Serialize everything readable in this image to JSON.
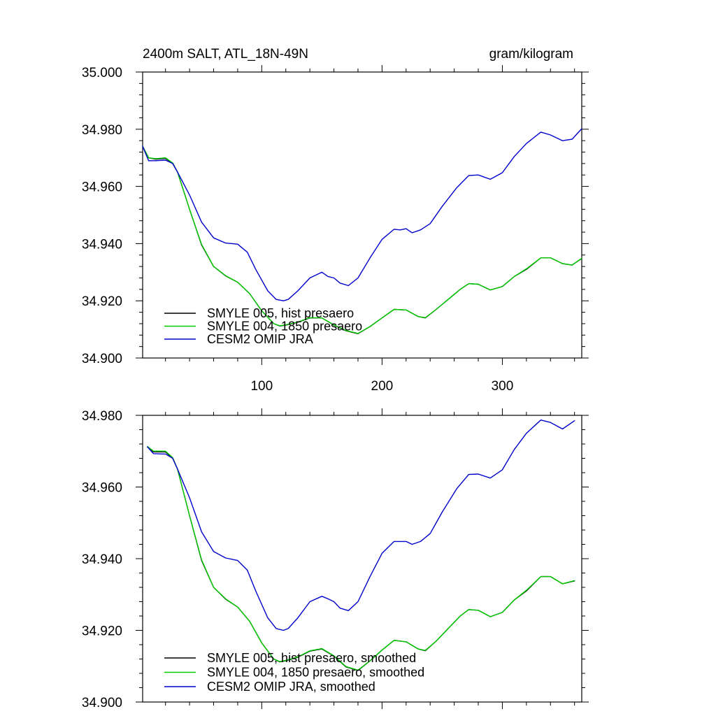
{
  "chart_data": [
    {
      "type": "line",
      "title": "2400m SALT, ATL_18N-49N",
      "units": "gram/kilogram",
      "xlabel": "",
      "ylabel": "",
      "xlim": [
        1,
        366
      ],
      "ylim": [
        34.9,
        35.0
      ],
      "xticks": [
        100,
        200,
        300
      ],
      "xtick_labels": [
        "100",
        "200",
        "300"
      ],
      "yticks": [
        34.9,
        34.92,
        34.94,
        34.96,
        34.98,
        35.0
      ],
      "ytick_labels": [
        "34.900",
        "34.920",
        "34.940",
        "34.960",
        "34.980",
        "35.000"
      ],
      "legend_position": "bottom-left",
      "series": [
        {
          "name": "SMYLE 005, hist presaero",
          "color": "#000000",
          "x": [
            1,
            6,
            12,
            20,
            26,
            30,
            40,
            50,
            60,
            70,
            80,
            90,
            100,
            110,
            115,
            120,
            130,
            140,
            150,
            160,
            170,
            180,
            190,
            200,
            210,
            220,
            230,
            236,
            245,
            255,
            265,
            272,
            280,
            290,
            300,
            310,
            320,
            332,
            340,
            350,
            358,
            366
          ],
          "y": [
            34.974,
            34.97,
            34.9695,
            34.9698,
            34.968,
            34.965,
            34.952,
            34.9395,
            34.932,
            34.9287,
            34.9265,
            34.9225,
            34.9165,
            34.912,
            34.9112,
            34.9115,
            34.9125,
            34.914,
            34.914,
            34.9115,
            34.9095,
            34.9085,
            34.911,
            34.914,
            34.917,
            34.9168,
            34.9145,
            34.914,
            34.917,
            34.9205,
            34.924,
            34.926,
            34.9258,
            34.9238,
            34.925,
            34.9285,
            34.931,
            34.935,
            34.935,
            34.933,
            34.9325,
            34.9348
          ]
        },
        {
          "name": "SMYLE 004, 1850 presaero",
          "color": "#00cc00",
          "x": [
            1,
            6,
            12,
            20,
            26,
            30,
            40,
            50,
            60,
            70,
            80,
            90,
            100,
            110,
            115,
            120,
            130,
            140,
            150,
            160,
            170,
            180,
            190,
            200,
            210,
            220,
            230,
            236,
            245,
            255,
            265,
            272,
            280,
            290,
            300,
            310,
            320,
            332,
            340,
            350,
            358,
            366
          ],
          "y": [
            34.974,
            34.97,
            34.9697,
            34.97,
            34.9682,
            34.965,
            34.952,
            34.9397,
            34.932,
            34.9288,
            34.9265,
            34.9225,
            34.9165,
            34.912,
            34.9113,
            34.9116,
            34.9126,
            34.9141,
            34.914,
            34.9116,
            34.9096,
            34.9086,
            34.911,
            34.914,
            34.917,
            34.9168,
            34.9145,
            34.9141,
            34.917,
            34.9205,
            34.924,
            34.926,
            34.9258,
            34.9238,
            34.925,
            34.9285,
            34.9312,
            34.935,
            34.935,
            34.933,
            34.9325,
            34.9349
          ]
        },
        {
          "name": "CESM2 OMIP JRA",
          "color": "#0000cc",
          "x": [
            1,
            6,
            12,
            20,
            26,
            30,
            40,
            50,
            60,
            70,
            80,
            88,
            95,
            105,
            112,
            118,
            122,
            130,
            140,
            150,
            155,
            160,
            165,
            172,
            180,
            190,
            200,
            210,
            215,
            220,
            225,
            232,
            240,
            250,
            262,
            272,
            280,
            290,
            300,
            310,
            320,
            332,
            340,
            350,
            358,
            366
          ],
          "y": [
            34.974,
            34.969,
            34.969,
            34.9692,
            34.968,
            34.965,
            34.957,
            34.9475,
            34.942,
            34.9402,
            34.9398,
            34.937,
            34.931,
            34.9235,
            34.9205,
            34.92,
            34.9205,
            34.9235,
            34.928,
            34.93,
            34.9285,
            34.928,
            34.9262,
            34.9253,
            34.928,
            34.935,
            34.9415,
            34.945,
            34.9448,
            34.9452,
            34.9438,
            34.9448,
            34.947,
            34.953,
            34.9595,
            34.9638,
            34.964,
            34.9625,
            34.9648,
            34.9705,
            34.975,
            34.979,
            34.978,
            34.976,
            34.9765,
            34.9802
          ]
        }
      ]
    },
    {
      "type": "line",
      "title": "",
      "xlabel": "",
      "ylabel": "",
      "xlim": [
        1,
        366
      ],
      "ylim": [
        34.9,
        34.98
      ],
      "xticks": [
        100,
        200,
        300
      ],
      "xtick_labels": [],
      "yticks": [
        34.9,
        34.92,
        34.94,
        34.96,
        34.98
      ],
      "ytick_labels": [
        "34.900",
        "34.920",
        "34.940",
        "34.960",
        "34.980"
      ],
      "legend_position": "bottom-left",
      "series": [
        {
          "name": "SMYLE 005, hist presaero, smoothed",
          "color": "#000000",
          "x": [
            5,
            10,
            20,
            26,
            30,
            40,
            50,
            60,
            70,
            80,
            90,
            100,
            110,
            115,
            120,
            130,
            140,
            150,
            160,
            170,
            180,
            190,
            200,
            210,
            220,
            230,
            236,
            245,
            255,
            265,
            272,
            280,
            290,
            300,
            310,
            320,
            332,
            340,
            350,
            360
          ],
          "y": [
            34.9712,
            34.9698,
            34.9698,
            34.968,
            34.965,
            34.952,
            34.9395,
            34.932,
            34.9287,
            34.9265,
            34.9225,
            34.9165,
            34.912,
            34.9112,
            34.9115,
            34.9125,
            34.9142,
            34.9148,
            34.9128,
            34.9098,
            34.9088,
            34.9115,
            34.9145,
            34.9172,
            34.9168,
            34.9148,
            34.9143,
            34.917,
            34.9205,
            34.924,
            34.9258,
            34.9256,
            34.9238,
            34.925,
            34.9285,
            34.931,
            34.935,
            34.935,
            34.933,
            34.9338
          ]
        },
        {
          "name": "SMYLE 004, 1850 presaero, smoothed",
          "color": "#00cc00",
          "x": [
            5,
            10,
            20,
            26,
            30,
            40,
            50,
            60,
            70,
            80,
            90,
            100,
            110,
            115,
            120,
            130,
            140,
            150,
            160,
            170,
            180,
            190,
            200,
            210,
            220,
            230,
            236,
            245,
            255,
            265,
            272,
            280,
            290,
            300,
            310,
            320,
            332,
            340,
            350,
            360
          ],
          "y": [
            34.9713,
            34.97,
            34.97,
            34.9682,
            34.965,
            34.952,
            34.9397,
            34.932,
            34.9288,
            34.9265,
            34.9225,
            34.9165,
            34.912,
            34.9113,
            34.9116,
            34.9126,
            34.9143,
            34.9149,
            34.9129,
            34.9099,
            34.9089,
            34.9115,
            34.9145,
            34.9172,
            34.9168,
            34.9148,
            34.9144,
            34.917,
            34.9205,
            34.924,
            34.9258,
            34.9256,
            34.9238,
            34.925,
            34.9285,
            34.9312,
            34.935,
            34.935,
            34.933,
            34.9339
          ]
        },
        {
          "name": "CESM2 OMIP JRA, smoothed",
          "color": "#0000cc",
          "x": [
            5,
            10,
            20,
            26,
            30,
            40,
            50,
            60,
            70,
            80,
            88,
            95,
            105,
            112,
            118,
            122,
            130,
            140,
            150,
            155,
            160,
            165,
            172,
            180,
            190,
            200,
            210,
            215,
            220,
            225,
            232,
            240,
            250,
            262,
            272,
            280,
            290,
            300,
            310,
            320,
            332,
            340,
            350,
            360
          ],
          "y": [
            34.9712,
            34.9693,
            34.9692,
            34.968,
            34.965,
            34.957,
            34.9475,
            34.942,
            34.9402,
            34.9395,
            34.9368,
            34.931,
            34.9235,
            34.9205,
            34.92,
            34.9205,
            34.9235,
            34.928,
            34.9295,
            34.9288,
            34.928,
            34.9262,
            34.9255,
            34.928,
            34.935,
            34.9415,
            34.9448,
            34.9448,
            34.9448,
            34.944,
            34.9448,
            34.947,
            34.953,
            34.9595,
            34.9635,
            34.9636,
            34.9625,
            34.9648,
            34.9705,
            34.975,
            34.9787,
            34.978,
            34.9762,
            34.9785
          ]
        }
      ]
    }
  ]
}
